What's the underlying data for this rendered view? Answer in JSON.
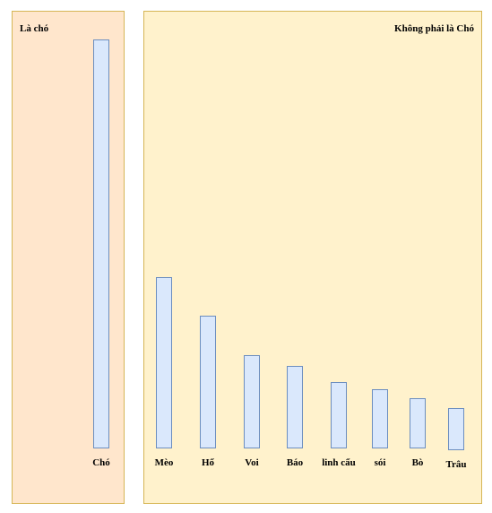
{
  "panels": {
    "left": {
      "title": "Là chó"
    },
    "right": {
      "title": "Không phải là Chó"
    }
  },
  "colors": {
    "left_panel_fill": "#ffe6cc",
    "right_panel_fill": "#fff2cc",
    "panel_border": "#d6b656",
    "bar_fill": "#dae8fc",
    "bar_border": "#6c8ebf"
  },
  "chart_data": {
    "type": "bar",
    "categories": [
      "Chó",
      "Mèo",
      "Hổ",
      "Voi",
      "Báo",
      "linh cẩu",
      "sói",
      "Bò",
      "Trâu"
    ],
    "values": [
      100,
      41.9,
      32.4,
      22.8,
      20.2,
      16.2,
      14.5,
      12.3,
      10.3
    ],
    "groups": [
      {
        "panel": "left",
        "categories": [
          "Chó"
        ]
      },
      {
        "panel": "right",
        "categories": [
          "Mèo",
          "Hổ",
          "Voi",
          "Báo",
          "linh cẩu",
          "sói",
          "Bò",
          "Trâu"
        ]
      }
    ]
  }
}
